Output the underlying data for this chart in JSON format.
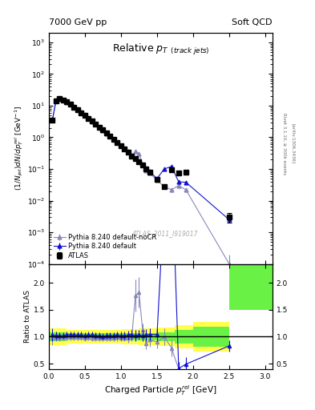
{
  "title_left": "7000 GeV pp",
  "title_right": "Soft QCD",
  "plot_title": "Relative $p_T$ $_{(track jets)}$",
  "xlabel": "Charged Particle $p_{T}^{rel}$ [GeV]",
  "ylabel_main": "$(1/N_{jet})dN/dp_{T}^{rel}$ [GeV$^{-1}$]",
  "ylabel_ratio": "Ratio to ATLAS",
  "watermark": "ATLAS_2011_I919017",
  "color_atlas": "#000000",
  "color_default": "#1111cc",
  "color_nocr": "#8888bb",
  "ylim_main": [
    0.0001,
    2000.0
  ],
  "ylim_ratio": [
    0.4,
    2.35
  ],
  "xlim": [
    0.0,
    3.1
  ],
  "legend_labels": [
    "ATLAS",
    "Pythia 8.240 default",
    "Pythia 8.240 default-noCR"
  ],
  "atlas_x": [
    0.05,
    0.1,
    0.15,
    0.2,
    0.25,
    0.3,
    0.35,
    0.4,
    0.45,
    0.5,
    0.55,
    0.6,
    0.65,
    0.7,
    0.75,
    0.8,
    0.85,
    0.9,
    0.95,
    1.0,
    1.05,
    1.1,
    1.15,
    1.2,
    1.25,
    1.3,
    1.35,
    1.4,
    1.5,
    1.6,
    1.7,
    1.8,
    1.9,
    2.5
  ],
  "atlas_y": [
    3.5,
    14.5,
    16.5,
    15.0,
    13.0,
    11.0,
    9.0,
    7.5,
    6.0,
    5.0,
    4.0,
    3.2,
    2.6,
    2.1,
    1.7,
    1.35,
    1.08,
    0.86,
    0.68,
    0.54,
    0.43,
    0.34,
    0.26,
    0.21,
    0.165,
    0.13,
    0.1,
    0.079,
    0.048,
    0.028,
    0.095,
    0.075,
    0.078,
    0.003
  ],
  "atlas_yerr": [
    0.4,
    1.0,
    1.0,
    0.9,
    0.8,
    0.7,
    0.6,
    0.5,
    0.4,
    0.35,
    0.28,
    0.22,
    0.18,
    0.14,
    0.12,
    0.09,
    0.07,
    0.06,
    0.05,
    0.04,
    0.03,
    0.025,
    0.02,
    0.015,
    0.012,
    0.01,
    0.008,
    0.006,
    0.004,
    0.003,
    0.01,
    0.01,
    0.01,
    0.001
  ],
  "pd_x": [
    0.05,
    0.1,
    0.15,
    0.2,
    0.25,
    0.3,
    0.35,
    0.4,
    0.45,
    0.5,
    0.55,
    0.6,
    0.65,
    0.7,
    0.75,
    0.8,
    0.85,
    0.9,
    0.95,
    1.0,
    1.05,
    1.1,
    1.15,
    1.2,
    1.25,
    1.3,
    1.35,
    1.4,
    1.5,
    1.6,
    1.7,
    1.8,
    1.9,
    2.5
  ],
  "pd_y": [
    3.6,
    14.8,
    16.8,
    15.3,
    13.4,
    11.4,
    9.3,
    7.7,
    6.2,
    5.1,
    4.1,
    3.3,
    2.65,
    2.15,
    1.72,
    1.38,
    1.1,
    0.88,
    0.7,
    0.55,
    0.44,
    0.35,
    0.27,
    0.215,
    0.17,
    0.133,
    0.103,
    0.082,
    0.05,
    0.1,
    0.12,
    0.039,
    0.038,
    0.0025
  ],
  "pd_yerr": [
    0.15,
    0.4,
    0.4,
    0.4,
    0.35,
    0.3,
    0.25,
    0.2,
    0.18,
    0.14,
    0.11,
    0.09,
    0.07,
    0.06,
    0.05,
    0.04,
    0.033,
    0.026,
    0.021,
    0.017,
    0.013,
    0.011,
    0.008,
    0.007,
    0.005,
    0.004,
    0.004,
    0.003,
    0.002,
    0.005,
    0.006,
    0.003,
    0.003,
    0.0002
  ],
  "pn_x": [
    0.05,
    0.1,
    0.15,
    0.2,
    0.25,
    0.3,
    0.35,
    0.4,
    0.45,
    0.5,
    0.55,
    0.6,
    0.65,
    0.7,
    0.75,
    0.8,
    0.85,
    0.9,
    0.95,
    1.0,
    1.05,
    1.1,
    1.15,
    1.2,
    1.25,
    1.3,
    1.35,
    1.4,
    1.5,
    1.6,
    1.7,
    1.8,
    1.9,
    2.5
  ],
  "pn_y": [
    3.4,
    14.2,
    16.2,
    14.8,
    12.9,
    10.9,
    8.9,
    7.4,
    5.95,
    4.9,
    3.95,
    3.15,
    2.55,
    2.05,
    1.65,
    1.32,
    1.06,
    0.84,
    0.67,
    0.53,
    0.42,
    0.33,
    0.26,
    0.37,
    0.3,
    0.145,
    0.088,
    0.074,
    0.043,
    0.028,
    0.022,
    0.03,
    0.022,
    0.0001
  ],
  "pn_yerr": [
    0.15,
    0.4,
    0.4,
    0.4,
    0.35,
    0.3,
    0.25,
    0.2,
    0.18,
    0.14,
    0.11,
    0.09,
    0.07,
    0.06,
    0.05,
    0.04,
    0.033,
    0.026,
    0.021,
    0.017,
    0.013,
    0.011,
    0.008,
    0.03,
    0.025,
    0.012,
    0.007,
    0.006,
    0.004,
    0.003,
    0.003,
    0.005,
    0.003,
    0.0001
  ],
  "rd_x": [
    0.05,
    0.1,
    0.15,
    0.2,
    0.25,
    0.3,
    0.35,
    0.4,
    0.45,
    0.5,
    0.55,
    0.6,
    0.65,
    0.7,
    0.75,
    0.8,
    0.85,
    0.9,
    0.95,
    1.0,
    1.05,
    1.1,
    1.15,
    1.2,
    1.25,
    1.3,
    1.35,
    1.4,
    1.5,
    1.6,
    1.7,
    1.8,
    1.9,
    2.5
  ],
  "rd_y": [
    1.03,
    1.02,
    1.02,
    1.02,
    1.03,
    1.04,
    1.03,
    1.03,
    1.03,
    1.02,
    1.03,
    1.03,
    1.02,
    1.02,
    1.01,
    1.02,
    1.02,
    1.02,
    1.03,
    1.02,
    1.02,
    1.03,
    1.04,
    1.02,
    1.03,
    1.02,
    1.03,
    1.04,
    1.04,
    3.57,
    4.29,
    0.41,
    0.49,
    0.83
  ],
  "rd_yerr": [
    0.12,
    0.07,
    0.06,
    0.06,
    0.06,
    0.06,
    0.06,
    0.06,
    0.06,
    0.06,
    0.06,
    0.06,
    0.06,
    0.06,
    0.06,
    0.06,
    0.06,
    0.06,
    0.07,
    0.07,
    0.07,
    0.08,
    0.09,
    0.1,
    0.09,
    0.1,
    0.11,
    0.11,
    0.12,
    0.5,
    0.5,
    0.12,
    0.13,
    0.1
  ],
  "rn_x": [
    0.05,
    0.1,
    0.15,
    0.2,
    0.25,
    0.3,
    0.35,
    0.4,
    0.45,
    0.5,
    0.55,
    0.6,
    0.65,
    0.7,
    0.75,
    0.8,
    0.85,
    0.9,
    0.95,
    1.0,
    1.05,
    1.1,
    1.15,
    1.2,
    1.25,
    1.3,
    1.35,
    1.4,
    1.5,
    1.6,
    1.7,
    1.8,
    1.9,
    2.5
  ],
  "rn_y": [
    0.97,
    0.98,
    0.98,
    0.99,
    0.99,
    0.99,
    0.99,
    0.99,
    0.99,
    0.98,
    0.99,
    0.98,
    0.98,
    0.98,
    0.97,
    0.98,
    0.98,
    0.98,
    0.99,
    0.98,
    0.98,
    0.97,
    1.0,
    1.76,
    1.82,
    1.12,
    0.88,
    0.94,
    0.9,
    1.0,
    0.79,
    0.4,
    0.28,
    0.0
  ],
  "rn_yerr": [
    0.12,
    0.07,
    0.06,
    0.06,
    0.06,
    0.06,
    0.06,
    0.06,
    0.06,
    0.06,
    0.06,
    0.06,
    0.06,
    0.06,
    0.06,
    0.06,
    0.06,
    0.06,
    0.07,
    0.07,
    0.07,
    0.08,
    0.09,
    0.3,
    0.28,
    0.13,
    0.11,
    0.12,
    0.12,
    0.15,
    0.15,
    0.12,
    0.1,
    0.01
  ],
  "band_x_edges": [
    0.0,
    0.25,
    0.5,
    0.75,
    1.0,
    1.25,
    1.5,
    1.75,
    2.0,
    2.5,
    3.1
  ],
  "band_green_lo": [
    0.92,
    0.94,
    0.94,
    0.94,
    0.93,
    0.93,
    0.92,
    0.88,
    0.82,
    1.5,
    1.5
  ],
  "band_green_hi": [
    1.08,
    1.06,
    1.06,
    1.06,
    1.07,
    1.07,
    1.08,
    1.12,
    1.18,
    2.5,
    2.5
  ],
  "band_yellow_lo": [
    0.84,
    0.87,
    0.87,
    0.87,
    0.86,
    0.85,
    0.83,
    0.78,
    0.72,
    1.5,
    1.5
  ],
  "band_yellow_hi": [
    1.16,
    1.13,
    1.13,
    1.13,
    1.14,
    1.15,
    1.17,
    1.22,
    1.28,
    2.5,
    2.5
  ]
}
